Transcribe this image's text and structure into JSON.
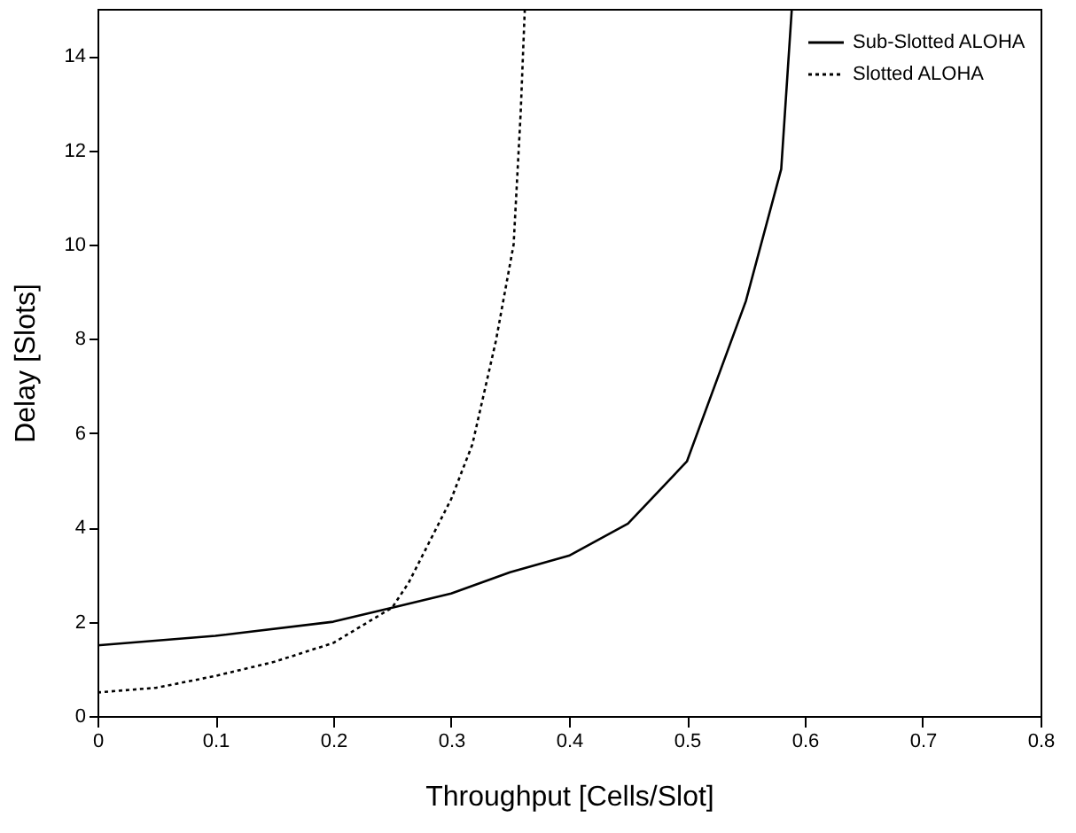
{
  "chart_data": {
    "type": "line",
    "xlabel": "Throughput [Cells/Slot]",
    "ylabel": "Delay [Slots]",
    "xlim": [
      0,
      0.8
    ],
    "ylim": [
      0,
      15
    ],
    "xticks": [
      0,
      0.1,
      0.2,
      0.3,
      0.4,
      0.5,
      0.6,
      0.7,
      0.8
    ],
    "yticks": [
      0,
      2,
      4,
      6,
      8,
      10,
      12,
      14
    ],
    "grid": false,
    "legend": "top right",
    "marker": "none",
    "series": [
      {
        "name": "Sub-Slotted ALOHA",
        "color": "#000000",
        "line_style": "solid",
        "x": [
          0,
          0.1,
          0.2,
          0.25,
          0.3,
          0.35,
          0.4,
          0.45,
          0.5,
          0.55,
          0.58,
          0.589
        ],
        "values": [
          1.5,
          1.7,
          2.0,
          2.3,
          2.6,
          3.05,
          3.4,
          4.08,
          5.4,
          8.8,
          11.6,
          15
        ]
      },
      {
        "name": "Slotted ALOHA",
        "color": "#000000",
        "line_style": "dotted",
        "x": [
          0,
          0.05,
          0.1,
          0.15,
          0.2,
          0.25,
          0.264,
          0.3,
          0.318,
          0.338,
          0.353,
          0.359,
          0.3625
        ],
        "values": [
          0.5,
          0.6,
          0.85,
          1.15,
          1.55,
          2.3,
          2.83,
          4.6,
          5.76,
          7.96,
          10.0,
          12.8,
          15
        ]
      }
    ]
  }
}
